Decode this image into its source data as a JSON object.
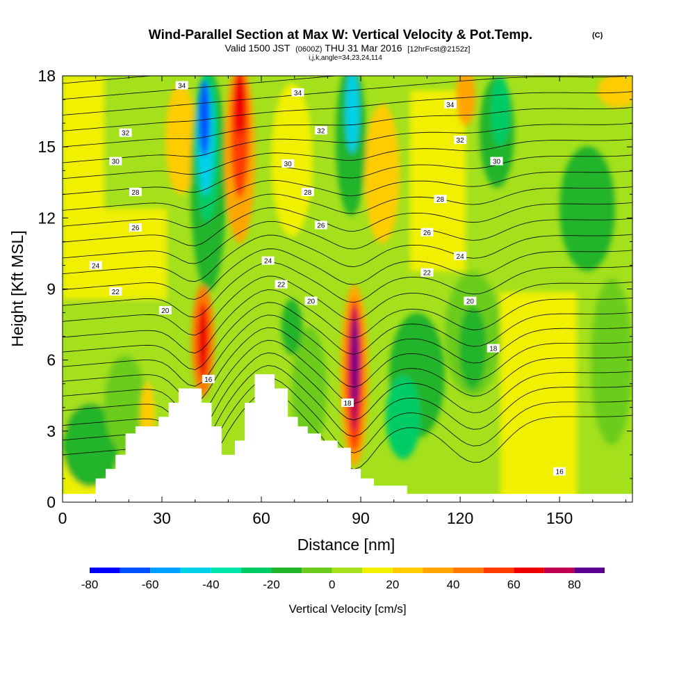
{
  "header": {
    "title": "Wind-Parallel Section at Max W: Vertical Velocity & Pot.Temp.",
    "copyright": "(C)",
    "valid_prefix": "Valid 1500 JST",
    "utc": "(0600Z)",
    "valid_date": "THU 31 Mar 2016",
    "forecast": "[12hrFcst@2152z]",
    "indices": "i,j,k,angle=34,23,24,114"
  },
  "chart_data": {
    "type": "heatmap",
    "title": "Wind-Parallel Section at Max W: Vertical Velocity & Pot.Temp.",
    "xlabel": "Distance [nm]",
    "ylabel": "Height [Kft MSL]",
    "xlim": [
      0,
      172
    ],
    "ylim": [
      0,
      18
    ],
    "x_ticks": [
      "0",
      "30",
      "60",
      "90",
      "120",
      "150"
    ],
    "y_ticks": [
      "0",
      "3",
      "6",
      "9",
      "12",
      "15",
      "18"
    ],
    "grid": false,
    "colorbar": {
      "label": "Vertical Velocity [cm/s]",
      "tick_labels": [
        "-80",
        "-60",
        "-40",
        "-20",
        "0",
        "20",
        "40",
        "60",
        "80"
      ],
      "levels": [
        -80,
        -70,
        -60,
        -50,
        -40,
        -30,
        -20,
        -10,
        0,
        10,
        20,
        30,
        40,
        50,
        60,
        70,
        80,
        90
      ],
      "colors": [
        "#0000ff",
        "#0050ff",
        "#00a0ff",
        "#00d0e8",
        "#00e6aa",
        "#00cc66",
        "#22b42a",
        "#6ccc1e",
        "#a4e01c",
        "#f0f000",
        "#ffcc00",
        "#ffa500",
        "#ff7a00",
        "#ff3c00",
        "#ee0000",
        "#c00050",
        "#5a0090"
      ]
    },
    "contour_labels": [
      {
        "text": "34",
        "x": 36,
        "y": 17.6
      },
      {
        "text": "34",
        "x": 71,
        "y": 17.3
      },
      {
        "text": "34",
        "x": 117,
        "y": 16.8
      },
      {
        "text": "32",
        "x": 19,
        "y": 15.6
      },
      {
        "text": "32",
        "x": 78,
        "y": 15.7
      },
      {
        "text": "32",
        "x": 120,
        "y": 15.3
      },
      {
        "text": "30",
        "x": 16,
        "y": 14.4
      },
      {
        "text": "30",
        "x": 68,
        "y": 14.3
      },
      {
        "text": "30",
        "x": 131,
        "y": 14.4
      },
      {
        "text": "28",
        "x": 22,
        "y": 13.1
      },
      {
        "text": "28",
        "x": 74,
        "y": 13.1
      },
      {
        "text": "28",
        "x": 114,
        "y": 12.8
      },
      {
        "text": "26",
        "x": 22,
        "y": 11.6
      },
      {
        "text": "26",
        "x": 78,
        "y": 11.7
      },
      {
        "text": "26",
        "x": 110,
        "y": 11.4
      },
      {
        "text": "24",
        "x": 10,
        "y": 10
      },
      {
        "text": "24",
        "x": 62,
        "y": 10.2
      },
      {
        "text": "24",
        "x": 120,
        "y": 10.4
      },
      {
        "text": "22",
        "x": 16,
        "y": 8.9
      },
      {
        "text": "22",
        "x": 66,
        "y": 9.2
      },
      {
        "text": "22",
        "x": 110,
        "y": 9.7
      },
      {
        "text": "20",
        "x": 31,
        "y": 8.1
      },
      {
        "text": "20",
        "x": 75,
        "y": 8.5
      },
      {
        "text": "20",
        "x": 123,
        "y": 8.5
      },
      {
        "text": "18",
        "x": 86,
        "y": 4.2
      },
      {
        "text": "18",
        "x": 130,
        "y": 6.5
      },
      {
        "text": "16",
        "x": 44,
        "y": 5.2
      },
      {
        "text": "16",
        "x": 150,
        "y": 1.3
      }
    ],
    "terrain": [
      [
        0,
        0.35
      ],
      [
        10,
        0.35
      ],
      [
        10,
        1
      ],
      [
        13,
        1
      ],
      [
        13,
        1.4
      ],
      [
        16,
        1.4
      ],
      [
        16,
        2
      ],
      [
        19,
        2
      ],
      [
        19,
        2.9
      ],
      [
        22,
        2.9
      ],
      [
        22,
        3.2
      ],
      [
        29,
        3.2
      ],
      [
        29,
        3.6
      ],
      [
        32,
        3.6
      ],
      [
        32,
        4.2
      ],
      [
        35,
        4.2
      ],
      [
        35,
        4.8
      ],
      [
        42,
        4.8
      ],
      [
        42,
        4.2
      ],
      [
        45,
        4.2
      ],
      [
        45,
        3.2
      ],
      [
        48,
        3.2
      ],
      [
        48,
        2
      ],
      [
        52,
        2
      ],
      [
        52,
        2.6
      ],
      [
        55,
        2.6
      ],
      [
        55,
        4.2
      ],
      [
        58,
        4.2
      ],
      [
        58,
        5.4
      ],
      [
        64,
        5.4
      ],
      [
        64,
        4.8
      ],
      [
        68,
        4.8
      ],
      [
        68,
        3.6
      ],
      [
        71,
        3.6
      ],
      [
        71,
        3.2
      ],
      [
        74,
        3.2
      ],
      [
        74,
        2.9
      ],
      [
        78,
        2.9
      ],
      [
        78,
        2.6
      ],
      [
        83,
        2.6
      ],
      [
        83,
        2.3
      ],
      [
        87,
        2.3
      ],
      [
        87,
        1.4
      ],
      [
        90,
        1.4
      ],
      [
        90,
        1
      ],
      [
        94,
        1
      ],
      [
        94,
        0.7
      ],
      [
        97,
        0.7
      ],
      [
        97,
        0.7
      ],
      [
        104,
        0.7
      ],
      [
        104,
        0.35
      ],
      [
        172,
        0.35
      ]
    ]
  }
}
